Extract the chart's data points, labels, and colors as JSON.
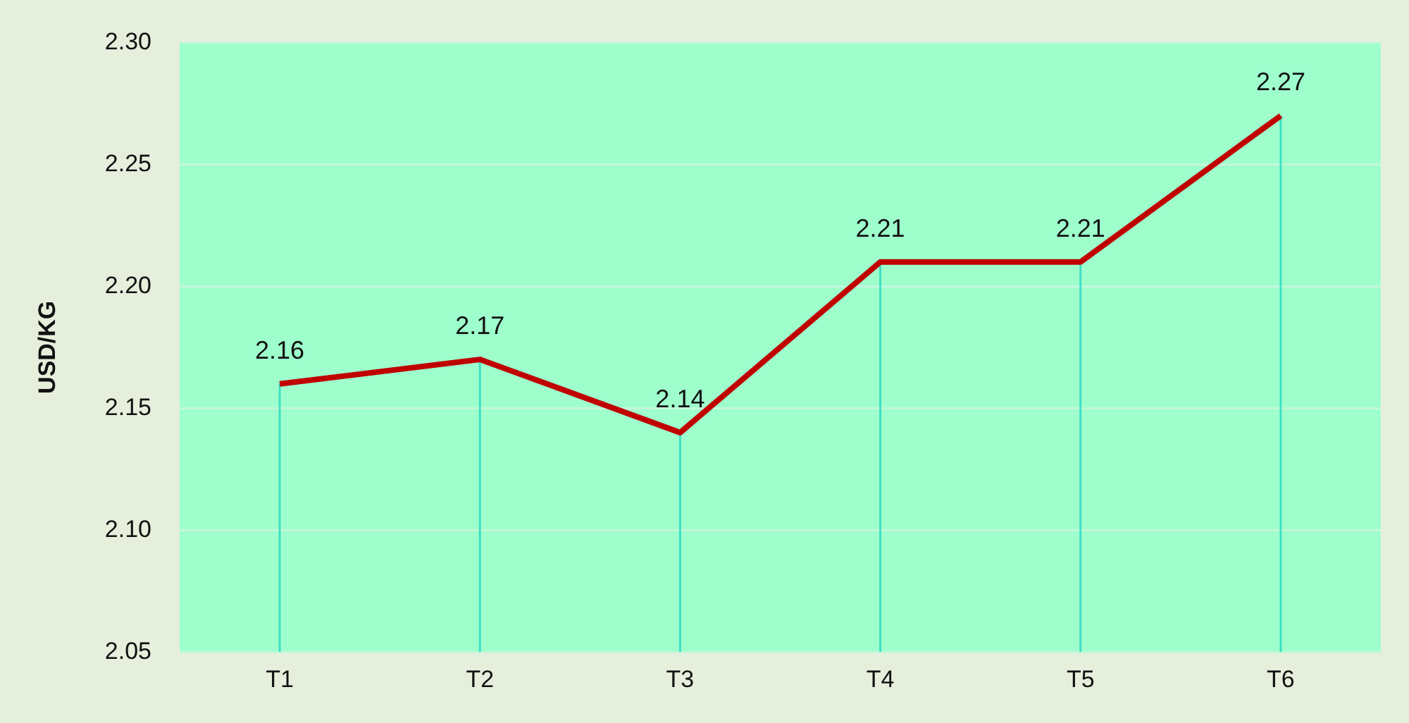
{
  "chart_data": {
    "type": "line",
    "ylabel": "USD/KG",
    "categories": [
      "T1",
      "T2",
      "T3",
      "T4",
      "T5",
      "T6"
    ],
    "series": [
      {
        "color": "#c00000",
        "values": [
          2.16,
          2.17,
          2.14,
          2.21,
          2.21,
          2.27
        ],
        "errors": [
          [
            2.05,
            2.16
          ],
          [
            2.05,
            2.17
          ],
          [
            2.05,
            2.14
          ],
          [
            2.05,
            2.21
          ],
          [
            2.05,
            2.21
          ],
          [
            2.05,
            2.27
          ]
        ]
      }
    ],
    "ylim": [
      2.05,
      2.3
    ],
    "yticks": [
      2.05,
      {
        "value": 2.1,
        "label": "2.10"
      },
      2.15,
      {
        "value": 2.2,
        "label": "2.20"
      },
      2.25,
      {
        "value": 2.3,
        "label": "2.30"
      }
    ],
    "grid": "y",
    "data_labels": true,
    "marker": "none",
    "line_style": "solid",
    "legend": false
  }
}
